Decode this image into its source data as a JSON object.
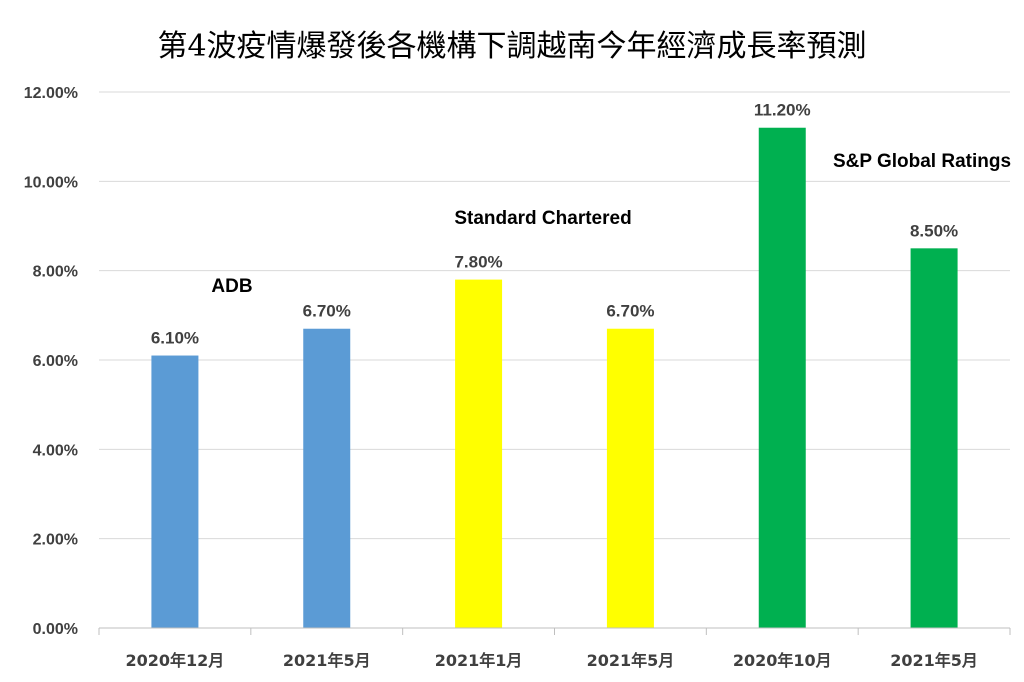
{
  "chart_data": {
    "type": "bar",
    "title": "第4波疫情爆發後各機構下調越南今年經濟成長率預測",
    "xlabel": "",
    "ylabel": "",
    "categories": [
      "2020年12月",
      "2021年5月",
      "2021年1月",
      "2021年5月",
      "2020年10月",
      "2021年5月"
    ],
    "values": [
      6.1,
      6.7,
      7.8,
      6.7,
      11.2,
      8.5
    ],
    "data_labels": [
      "6.10%",
      "6.70%",
      "7.80%",
      "6.70%",
      "11.20%",
      "8.50%"
    ],
    "bar_colors": [
      "#5b9bd5",
      "#5b9bd5",
      "#ffff00",
      "#ffff00",
      "#00b050",
      "#00b050"
    ],
    "groups": [
      {
        "label": "ADB",
        "categories": [
          0,
          1
        ],
        "color": "#5b9bd5"
      },
      {
        "label": "Standard Chartered",
        "categories": [
          2,
          3
        ],
        "color": "#ffff00"
      },
      {
        "label": "S&P Global Ratings",
        "categories": [
          4,
          5
        ],
        "color": "#00b050"
      }
    ],
    "ylim": [
      0,
      12
    ],
    "yticks": [
      0,
      2,
      4,
      6,
      8,
      10,
      12
    ],
    "ytick_labels": [
      "0.00%",
      "2.00%",
      "4.00%",
      "6.00%",
      "8.00%",
      "10.00%",
      "12.00%"
    ],
    "grid": true,
    "legend": "none"
  }
}
